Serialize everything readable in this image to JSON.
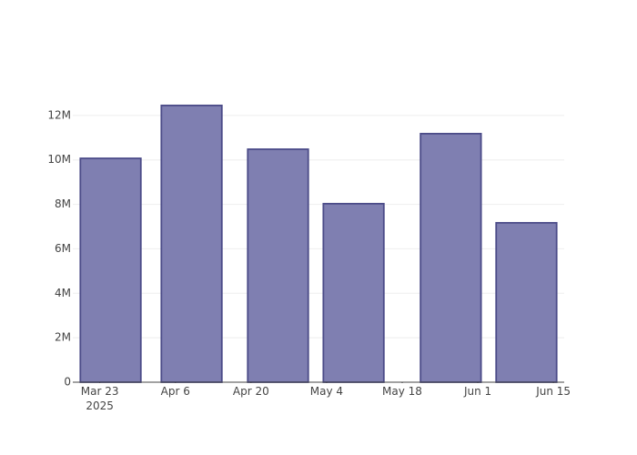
{
  "chart_data": {
    "type": "bar",
    "x": [
      "2025-03-25",
      "2025-04-09",
      "2025-04-25",
      "2025-05-09",
      "2025-05-27",
      "2025-06-10"
    ],
    "values": [
      10070000,
      12450000,
      10480000,
      8030000,
      11180000,
      7170000
    ],
    "color": "#7f7fb1",
    "edge_color": "#4b4b88",
    "xlim": [
      "2025-03-18",
      "2025-06-17"
    ],
    "xticks": [
      {
        "value": "2025-03-23",
        "label": "Mar 23\n2025"
      },
      {
        "value": "2025-04-06",
        "label": "Apr 6"
      },
      {
        "value": "2025-04-20",
        "label": "Apr 20"
      },
      {
        "value": "2025-05-04",
        "label": "May 4"
      },
      {
        "value": "2025-05-18",
        "label": "May 18"
      },
      {
        "value": "2025-06-01",
        "label": "Jun 1"
      },
      {
        "value": "2025-06-15",
        "label": "Jun 15"
      }
    ],
    "ylim": [
      0,
      13100000
    ],
    "yticks": [
      0,
      {
        "value": 2000000,
        "label": "2M"
      },
      {
        "value": 4000000,
        "label": "4M"
      },
      {
        "value": 6000000,
        "label": "6M"
      },
      {
        "value": 8000000,
        "label": "8M"
      },
      {
        "value": 10000000,
        "label": "10M"
      },
      {
        "value": 12000000,
        "label": "12M"
      }
    ],
    "grid": true
  }
}
